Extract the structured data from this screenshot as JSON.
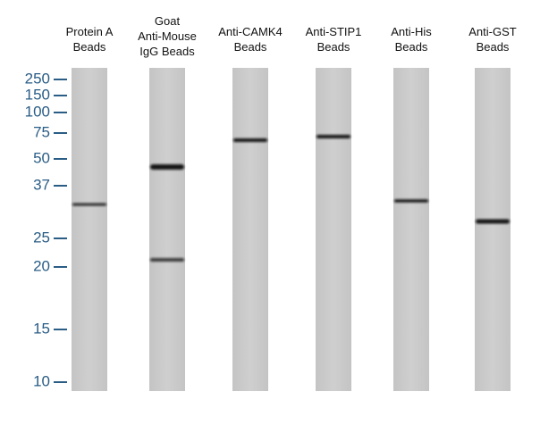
{
  "markers": [
    "250",
    "150",
    "100",
    "75",
    "50",
    "37",
    "25",
    "20",
    "15",
    "10"
  ],
  "lanes": [
    {
      "label": [
        "Protein A",
        "Beads"
      ]
    },
    {
      "label": [
        "Goat",
        "Anti-Mouse",
        "IgG Beads"
      ]
    },
    {
      "label": [
        "Anti-CAMK4",
        "Beads"
      ]
    },
    {
      "label": [
        "Anti-STIP1",
        "Beads"
      ]
    },
    {
      "label": [
        "Anti-His",
        "Beads"
      ]
    },
    {
      "label": [
        "Anti-GST",
        "Beads"
      ]
    }
  ]
}
